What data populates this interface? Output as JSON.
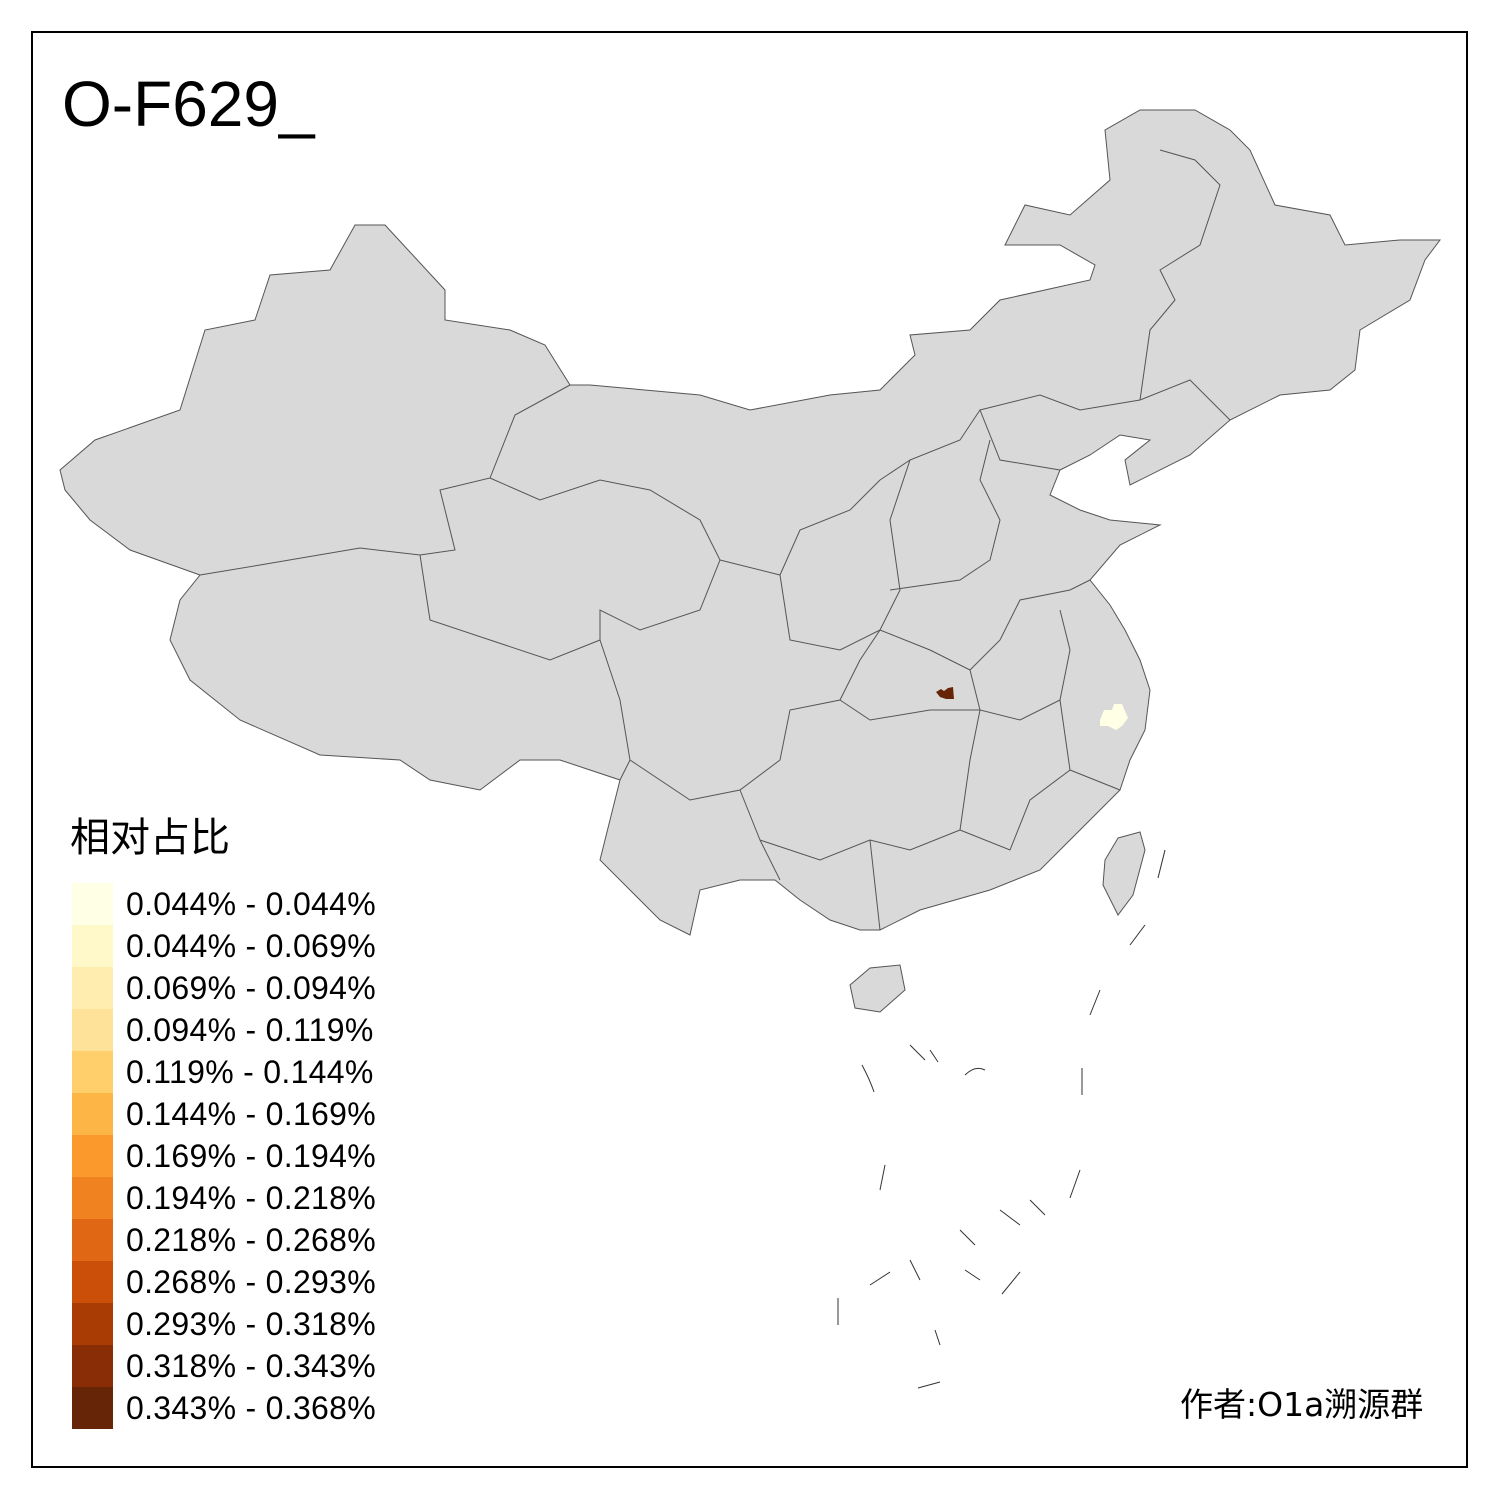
{
  "title": "O-F629_",
  "legend": {
    "title": "相对占比",
    "items": [
      {
        "label": "0.044% - 0.044%",
        "color": "#FFFFE5"
      },
      {
        "label": "0.044% - 0.069%",
        "color": "#FFF8C8"
      },
      {
        "label": "0.069% - 0.094%",
        "color": "#FEEDAF"
      },
      {
        "label": "0.094% - 0.119%",
        "color": "#FEE29A"
      },
      {
        "label": "0.119% - 0.144%",
        "color": "#FECF6A"
      },
      {
        "label": "0.144% - 0.169%",
        "color": "#FDB546"
      },
      {
        "label": "0.169% - 0.194%",
        "color": "#FB992C"
      },
      {
        "label": "0.194% - 0.218%",
        "color": "#F0821F"
      },
      {
        "label": "0.218% - 0.268%",
        "color": "#E06814"
      },
      {
        "label": "0.268% - 0.293%",
        "color": "#CB4F08"
      },
      {
        "label": "0.293% - 0.318%",
        "color": "#A93C04"
      },
      {
        "label": "0.318% - 0.343%",
        "color": "#882D05"
      },
      {
        "label": "0.343% - 0.368%",
        "color": "#662506"
      }
    ]
  },
  "map": {
    "base_color": "#D9D9D9",
    "border_color": "#555555",
    "highlighted_regions": [
      {
        "bin": "0.343% - 0.368%",
        "color": "#662506"
      },
      {
        "bin": "0.044% - 0.044%",
        "color": "#FFFFE5"
      }
    ]
  },
  "author": "作者:O1a溯源群"
}
